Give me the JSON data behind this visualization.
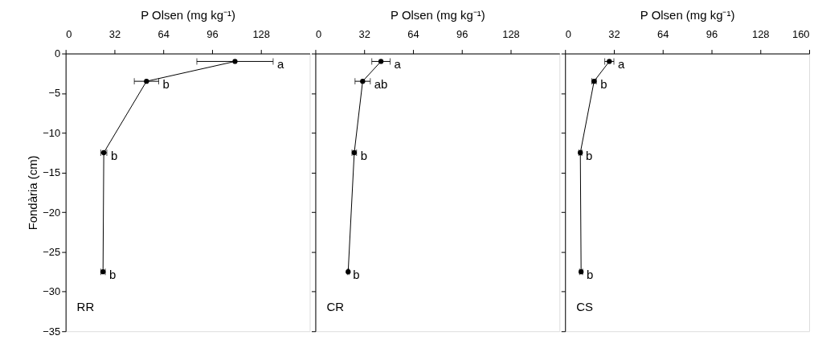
{
  "chart_data": [
    {
      "type": "line",
      "xlabel": "P Olsen (mg kg⁻¹)",
      "ylabel": "Fondària (cm)",
      "marker": "circle",
      "line_style": "solid",
      "grid": false,
      "xlim": [
        0,
        160
      ],
      "xticks": [
        0,
        32,
        64,
        96,
        128
      ],
      "ylim": [
        -35,
        0
      ],
      "yticks": [
        0,
        -5,
        -10,
        -15,
        -20,
        -25,
        -30,
        -35
      ],
      "series": [
        {
          "color": "#000000",
          "x": [
            111,
            53,
            25,
            24.5
          ],
          "values": [
            -1,
            -3.5,
            -12.5,
            -27.5
          ],
          "xerrors": [
            25,
            8,
            2,
            1.5
          ]
        }
      ],
      "annotations": [
        {
          "text": "a",
          "x": 136,
          "y": -1
        },
        {
          "text": "b",
          "x": 61,
          "y": -3.5
        },
        {
          "text": "b",
          "x": 27,
          "y": -12.5
        },
        {
          "text": "b",
          "x": 26,
          "y": -27.5
        },
        "RR"
      ]
    },
    {
      "type": "line",
      "xlabel": "P Olsen (mg kg⁻¹)",
      "marker": "circle",
      "line_style": "solid",
      "grid": false,
      "tick_labels": "x",
      "xlim": [
        0,
        160
      ],
      "xticks": [
        0,
        32,
        64,
        96,
        128
      ],
      "ylim": [
        -35,
        0
      ],
      "yticks": [
        0,
        -5,
        -10,
        -15,
        -20,
        -25,
        -30,
        -35
      ],
      "series": [
        {
          "color": "#000000",
          "x": [
            43,
            31,
            25.5,
            21.5
          ],
          "values": [
            -1,
            -3.5,
            -12.5,
            -27.5
          ],
          "xerrors": [
            6,
            5,
            1.5,
            0.5
          ]
        }
      ],
      "annotations": [
        {
          "text": "a",
          "x": 49,
          "y": -1
        },
        {
          "text": "ab",
          "x": 36,
          "y": -3.5
        },
        {
          "text": "b",
          "x": 27,
          "y": -12.5
        },
        {
          "text": "b",
          "x": 22,
          "y": -27.5
        },
        "CR"
      ]
    },
    {
      "type": "line",
      "xlabel": "P Olsen (mg kg⁻¹)",
      "marker": "circle",
      "line_style": "solid",
      "grid": false,
      "tick_labels": "x",
      "xlim": [
        0,
        160
      ],
      "xticks": [
        0,
        32,
        64,
        96,
        128,
        160
      ],
      "ylim": [
        -35,
        0
      ],
      "yticks": [
        0,
        -5,
        -10,
        -15,
        -20,
        -25,
        -30,
        -35
      ],
      "series": [
        {
          "color": "#000000",
          "x": [
            29,
            19,
            10,
            10.5
          ],
          "values": [
            -1,
            -3.5,
            -12.5,
            -27.5
          ],
          "xerrors": [
            3,
            1.5,
            1,
            1
          ]
        }
      ],
      "annotations": [
        {
          "text": "a",
          "x": 32,
          "y": -1
        },
        {
          "text": "b",
          "x": 20.5,
          "y": -3.5
        },
        {
          "text": "b",
          "x": 11,
          "y": -12.5
        },
        {
          "text": "b",
          "x": 11.5,
          "y": -27.5
        },
        "CS"
      ]
    }
  ]
}
